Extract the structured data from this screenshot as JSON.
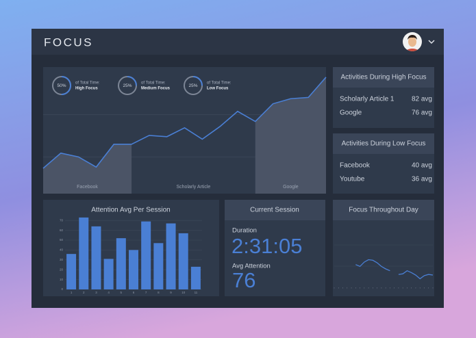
{
  "header": {
    "title": "FOCUS"
  },
  "summary": [
    {
      "value": 50,
      "value_label": "50%",
      "caption": "of Total Time:",
      "name": "High Focus"
    },
    {
      "value": 25,
      "value_label": "25%",
      "caption": "of Total Time:",
      "name": "Medium Focus"
    },
    {
      "value": 25,
      "value_label": "25%",
      "caption": "of Total Time:",
      "name": "Low Focus"
    }
  ],
  "main_chart": {
    "type": "area-line",
    "values": [
      20,
      32,
      29,
      21,
      39,
      39,
      46,
      45,
      52,
      43,
      53,
      65,
      57,
      71,
      75,
      76,
      92
    ],
    "ylim": [
      0,
      100
    ],
    "color": "#4a7fd4",
    "grid": true,
    "segments": [
      {
        "label": "Facebook",
        "from": 0,
        "to": 5,
        "shaded": true
      },
      {
        "label": "Scholarly Article",
        "from": 5,
        "to": 12,
        "shaded": false
      },
      {
        "label": "Google",
        "from": 12,
        "to": 16,
        "shaded": true
      }
    ]
  },
  "high_focus": {
    "title": "Activities During High Focus",
    "items": [
      {
        "name": "Scholarly Article 1",
        "value": "82 avg"
      },
      {
        "name": "Google",
        "value": "76 avg"
      }
    ]
  },
  "low_focus": {
    "title": "Activities During Low Focus",
    "items": [
      {
        "name": "Facebook",
        "value": "40 avg"
      },
      {
        "name": "Youtube",
        "value": "36 avg"
      }
    ]
  },
  "bar_chart": {
    "type": "bar",
    "title": "Attention Avg Per Session",
    "categories": [
      "1",
      "2",
      "3",
      "4",
      "5",
      "6",
      "7",
      "8",
      "9",
      "10",
      "11"
    ],
    "values": [
      36,
      73,
      64,
      31,
      52,
      40,
      69,
      47,
      67,
      57,
      23
    ],
    "ylim": [
      0,
      75
    ],
    "yticks": [
      0,
      10,
      20,
      30,
      40,
      50,
      60,
      70
    ],
    "color": "#4a7fd4",
    "grid": true
  },
  "current_session": {
    "title": "Current Session",
    "duration_label": "Duration",
    "duration": "2:31:05",
    "attention_label": "Avg Attention",
    "attention": "76"
  },
  "day_chart": {
    "type": "line",
    "title": "Focus Throughout Day",
    "values": [
      null,
      null,
      null,
      null,
      null,
      37,
      34,
      41,
      45,
      44,
      40,
      34,
      30,
      27,
      null,
      21,
      22,
      27,
      24,
      20,
      14,
      19,
      21,
      20
    ],
    "ylim": [
      0,
      100
    ],
    "color": "#4a7fd4",
    "grid": true
  }
}
